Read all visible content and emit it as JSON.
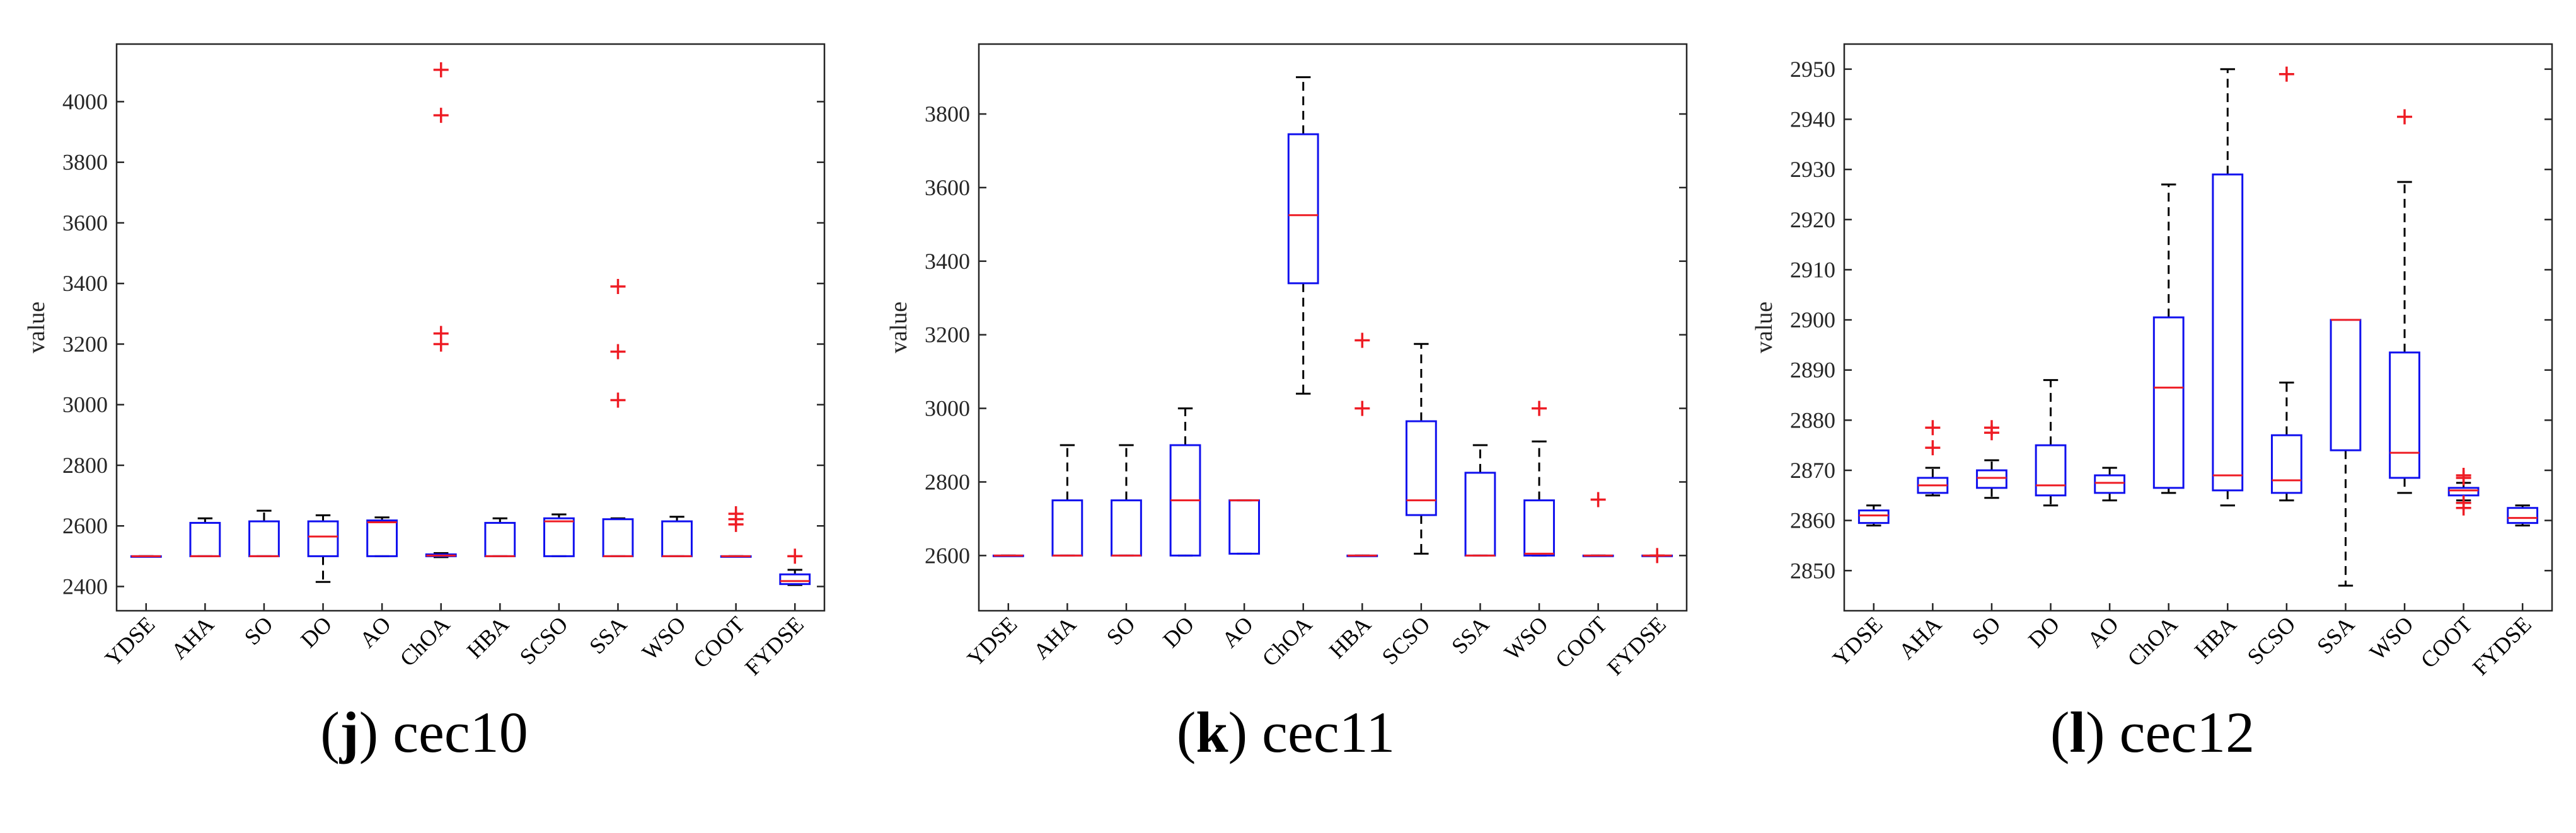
{
  "figure": {
    "colors": {
      "box": "#1010ee",
      "median": "#ee1c24",
      "outlier": "#ee1c24",
      "whisker": "#000000",
      "axis": "#262626"
    },
    "y_axis_label": "value"
  },
  "chart_data": [
    {
      "type": "boxplot",
      "caption": {
        "prefix": "(",
        "letter": "j",
        "suffix": ")",
        "name": "cec10"
      },
      "ylabel": "value",
      "ylim": [
        2320,
        4190
      ],
      "yticks": [
        2400,
        2600,
        2800,
        3000,
        3200,
        3400,
        3600,
        3800,
        4000
      ],
      "categories": [
        "YDSE",
        "AHA",
        "SO",
        "DO",
        "AO",
        "ChOA",
        "HBA",
        "SCSO",
        "SSA",
        "WSO",
        "COOT",
        "FYDSE"
      ],
      "series": [
        {
          "name": "YDSE",
          "whisker_low": 2500,
          "q1": 2500,
          "median": 2500,
          "q3": 2500,
          "whisker_high": 2500,
          "outliers": []
        },
        {
          "name": "AHA",
          "whisker_low": 2500,
          "q1": 2500,
          "median": 2500,
          "q3": 2610,
          "whisker_high": 2625,
          "outliers": []
        },
        {
          "name": "SO",
          "whisker_low": 2500,
          "q1": 2500,
          "median": 2500,
          "q3": 2615,
          "whisker_high": 2650,
          "outliers": []
        },
        {
          "name": "DO",
          "whisker_low": 2415,
          "q1": 2500,
          "median": 2565,
          "q3": 2615,
          "whisker_high": 2635,
          "outliers": []
        },
        {
          "name": "AO",
          "whisker_low": 2500,
          "q1": 2500,
          "median": 2612,
          "q3": 2618,
          "whisker_high": 2628,
          "outliers": []
        },
        {
          "name": "ChOA",
          "whisker_low": 2497,
          "q1": 2500,
          "median": 2502,
          "q3": 2506,
          "whisker_high": 2510,
          "outliers": [
            3200,
            3235,
            3955,
            4105
          ]
        },
        {
          "name": "HBA",
          "whisker_low": 2500,
          "q1": 2500,
          "median": 2500,
          "q3": 2610,
          "whisker_high": 2625,
          "outliers": []
        },
        {
          "name": "SCSO",
          "whisker_low": 2500,
          "q1": 2500,
          "median": 2615,
          "q3": 2625,
          "whisker_high": 2638,
          "outliers": []
        },
        {
          "name": "SSA",
          "whisker_low": 2500,
          "q1": 2500,
          "median": 2500,
          "q3": 2622,
          "whisker_high": 2625,
          "outliers": [
            3015,
            3175,
            3390
          ]
        },
        {
          "name": "WSO",
          "whisker_low": 2500,
          "q1": 2500,
          "median": 2500,
          "q3": 2615,
          "whisker_high": 2630,
          "outliers": []
        },
        {
          "name": "COOT",
          "whisker_low": 2500,
          "q1": 2500,
          "median": 2500,
          "q3": 2500,
          "whisker_high": 2500,
          "outliers": [
            2605,
            2622,
            2640
          ]
        },
        {
          "name": "FYDSE",
          "whisker_low": 2405,
          "q1": 2408,
          "median": 2418,
          "q3": 2440,
          "whisker_high": 2455,
          "outliers": [
            2500
          ]
        }
      ]
    },
    {
      "type": "boxplot",
      "caption": {
        "prefix": "(",
        "letter": "k",
        "suffix": ")",
        "name": "cec11"
      },
      "ylabel": "value",
      "ylim": [
        2450,
        3990
      ],
      "yticks": [
        2600,
        2800,
        3000,
        3200,
        3400,
        3600,
        3800
      ],
      "categories": [
        "YDSE",
        "AHA",
        "SO",
        "DO",
        "AO",
        "ChOA",
        "HBA",
        "SCSO",
        "SSA",
        "WSO",
        "COOT",
        "FYDSE"
      ],
      "series": [
        {
          "name": "YDSE",
          "whisker_low": 2600,
          "q1": 2600,
          "median": 2600,
          "q3": 2600,
          "whisker_high": 2600,
          "outliers": []
        },
        {
          "name": "AHA",
          "whisker_low": 2600,
          "q1": 2600,
          "median": 2600,
          "q3": 2750,
          "whisker_high": 2900,
          "outliers": []
        },
        {
          "name": "SO",
          "whisker_low": 2600,
          "q1": 2600,
          "median": 2600,
          "q3": 2750,
          "whisker_high": 2900,
          "outliers": []
        },
        {
          "name": "DO",
          "whisker_low": 2600,
          "q1": 2600,
          "median": 2750,
          "q3": 2900,
          "whisker_high": 3000,
          "outliers": []
        },
        {
          "name": "AO",
          "whisker_low": 2605,
          "q1": 2605,
          "median": 2750,
          "q3": 2750,
          "whisker_high": 2750,
          "outliers": []
        },
        {
          "name": "ChOA",
          "whisker_low": 3040,
          "q1": 3340,
          "median": 3525,
          "q3": 3745,
          "whisker_high": 3900,
          "outliers": []
        },
        {
          "name": "HBA",
          "whisker_low": 2600,
          "q1": 2600,
          "median": 2600,
          "q3": 2600,
          "whisker_high": 2600,
          "outliers": [
            3000,
            3185
          ]
        },
        {
          "name": "SCSO",
          "whisker_low": 2605,
          "q1": 2710,
          "median": 2750,
          "q3": 2965,
          "whisker_high": 3175,
          "outliers": []
        },
        {
          "name": "SSA",
          "whisker_low": 2600,
          "q1": 2600,
          "median": 2600,
          "q3": 2825,
          "whisker_high": 2900,
          "outliers": []
        },
        {
          "name": "WSO",
          "whisker_low": 2600,
          "q1": 2600,
          "median": 2605,
          "q3": 2750,
          "whisker_high": 2910,
          "outliers": [
            3000
          ]
        },
        {
          "name": "COOT",
          "whisker_low": 2600,
          "q1": 2600,
          "median": 2600,
          "q3": 2600,
          "whisker_high": 2600,
          "outliers": [
            2752
          ]
        },
        {
          "name": "FYDSE",
          "whisker_low": 2600,
          "q1": 2600,
          "median": 2600,
          "q3": 2600,
          "whisker_high": 2600,
          "outliers": [
            2600
          ]
        }
      ]
    },
    {
      "type": "boxplot",
      "caption": {
        "prefix": "(",
        "letter": "l",
        "suffix": ")",
        "name": "cec12"
      },
      "ylabel": "value",
      "ylim": [
        2842,
        2955
      ],
      "yticks": [
        2850,
        2860,
        2870,
        2880,
        2890,
        2900,
        2910,
        2920,
        2930,
        2940,
        2950
      ],
      "categories": [
        "YDSE",
        "AHA",
        "SO",
        "DO",
        "AO",
        "ChOA",
        "HBA",
        "SCSO",
        "SSA",
        "WSO",
        "COOT",
        "FYDSE"
      ],
      "series": [
        {
          "name": "YDSE",
          "whisker_low": 2859,
          "q1": 2859.5,
          "median": 2861,
          "q3": 2862,
          "whisker_high": 2863,
          "outliers": []
        },
        {
          "name": "AHA",
          "whisker_low": 2865,
          "q1": 2865.5,
          "median": 2867,
          "q3": 2868.5,
          "whisker_high": 2870.5,
          "outliers": [
            2874.5,
            2878.5
          ]
        },
        {
          "name": "SO",
          "whisker_low": 2864.5,
          "q1": 2866.5,
          "median": 2868.5,
          "q3": 2870,
          "whisker_high": 2872,
          "outliers": [
            2877.5,
            2878.5
          ]
        },
        {
          "name": "DO",
          "whisker_low": 2863,
          "q1": 2865,
          "median": 2867,
          "q3": 2875,
          "whisker_high": 2888,
          "outliers": []
        },
        {
          "name": "AO",
          "whisker_low": 2864,
          "q1": 2865.5,
          "median": 2867.5,
          "q3": 2869,
          "whisker_high": 2870.5,
          "outliers": []
        },
        {
          "name": "ChOA",
          "whisker_low": 2865.5,
          "q1": 2866.5,
          "median": 2886.5,
          "q3": 2900.5,
          "whisker_high": 2927,
          "outliers": []
        },
        {
          "name": "HBA",
          "whisker_low": 2863,
          "q1": 2866,
          "median": 2869,
          "q3": 2929,
          "whisker_high": 2950,
          "outliers": []
        },
        {
          "name": "SCSO",
          "whisker_low": 2864,
          "q1": 2865.5,
          "median": 2868,
          "q3": 2877,
          "whisker_high": 2887.5,
          "outliers": [
            2949
          ]
        },
        {
          "name": "SSA",
          "whisker_low": 2847,
          "q1": 2874,
          "median": 2900,
          "q3": 2900,
          "whisker_high": 2900,
          "outliers": []
        },
        {
          "name": "WSO",
          "whisker_low": 2865.5,
          "q1": 2868.5,
          "median": 2873.5,
          "q3": 2893.5,
          "whisker_high": 2927.5,
          "outliers": [
            2940.5
          ]
        },
        {
          "name": "COOT",
          "whisker_low": 2864,
          "q1": 2865,
          "median": 2866,
          "q3": 2866.5,
          "whisker_high": 2867.5,
          "outliers": [
            2862.5,
            2863.5,
            2868.5,
            2869
          ]
        },
        {
          "name": "FYDSE",
          "whisker_low": 2859,
          "q1": 2859.5,
          "median": 2860.5,
          "q3": 2862.5,
          "whisker_high": 2863,
          "outliers": []
        }
      ]
    }
  ]
}
